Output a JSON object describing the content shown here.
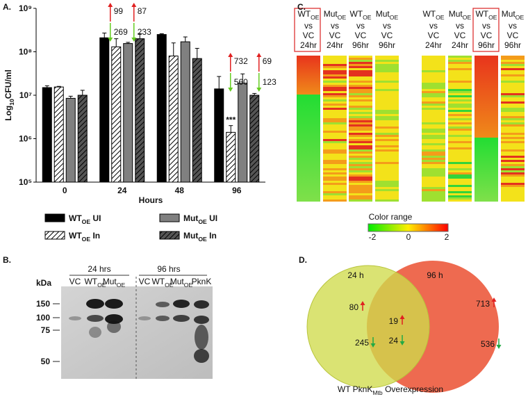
{
  "panel_labels": [
    "A.",
    "B.",
    "C.",
    "D."
  ],
  "chart_data": {
    "type": "bar",
    "log_y": true,
    "y_label": [
      "Log",
      "10",
      "CFU/ml"
    ],
    "x_label": "Hours",
    "categories": [
      "0",
      "24",
      "48",
      "96"
    ],
    "ylim": [
      100000,
      1000000000
    ],
    "yticks": [
      {
        "value": 100000,
        "label": "10⁵"
      },
      {
        "value": 1000000,
        "label": "10⁶"
      },
      {
        "value": 10000000,
        "label": "10⁷"
      },
      {
        "value": 100000000,
        "label": "10⁸"
      },
      {
        "value": 1000000000,
        "label": "10⁹"
      }
    ],
    "series": [
      {
        "name": [
          "WT",
          "OE",
          " UI"
        ],
        "color": "#000000",
        "hatch": false,
        "values": [
          15000000,
          210000000,
          250000000,
          14000000
        ],
        "errors": [
          1500000,
          60000000,
          10000000,
          13000000
        ]
      },
      {
        "name": [
          "WT",
          "OE",
          " In"
        ],
        "color": "#ffffff",
        "hatch": true,
        "values": [
          15500000,
          130000000,
          80000000,
          1400000
        ],
        "errors": [
          500000,
          70000000,
          80000000,
          600000
        ]
      },
      {
        "name": [
          "Mut",
          "OE",
          " UI"
        ],
        "color": "#808080",
        "hatch": false,
        "values": [
          8500000,
          155000000,
          170000000,
          19000000
        ],
        "errors": [
          1000000,
          10000000,
          50000000,
          12000000
        ]
      },
      {
        "name": [
          "Mut",
          "OE",
          " In"
        ],
        "color": "#555555",
        "hatch": true,
        "values": [
          10000000,
          200000000,
          70000000,
          10000000
        ],
        "errors": [
          3000000,
          60000000,
          50000000,
          1000000
        ]
      }
    ],
    "annotations": [
      {
        "up": "99",
        "down": "269"
      },
      {
        "up": "87",
        "down": "233"
      },
      {
        "up": "732",
        "down": "560"
      },
      {
        "up": "69",
        "down": "123"
      }
    ],
    "significance": "***"
  },
  "blot": {
    "unit": "kDa",
    "groups": [
      "24 hrs",
      "96 hrs"
    ],
    "lanes": [
      {
        "name": "VC"
      },
      {
        "name": "WT",
        "sub": "OE"
      },
      {
        "name": "Mut",
        "sub": "OE"
      },
      {
        "name": "VC"
      },
      {
        "name": "WT",
        "sub": "OE"
      },
      {
        "name": "Mut",
        "sub": "OE"
      },
      {
        "name": "PknK"
      }
    ],
    "markers": [
      "150",
      "100",
      "75",
      "50"
    ]
  },
  "heatmap": {
    "columns": [
      {
        "name": "WT",
        "sub": "OE",
        "vs": "vs",
        "ref": "VC",
        "time": "24hr"
      },
      {
        "name": "Mut",
        "sub": "OE",
        "vs": "vs",
        "ref": "VC",
        "time": "24hr"
      },
      {
        "name": "WT",
        "sub": "OE",
        "vs": "vs",
        "ref": "VC",
        "time": "96hr"
      },
      {
        "name": "Mut",
        "sub": "OE",
        "vs": "vs",
        "ref": "VC",
        "time": "96hr"
      },
      {
        "name": "WT",
        "sub": "OE",
        "vs": "vs",
        "ref": "VC",
        "time": "24hr"
      },
      {
        "name": "Mut",
        "sub": "OE",
        "vs": "vs",
        "ref": "VC",
        "time": "24hr"
      },
      {
        "name": "WT",
        "sub": "OE",
        "vs": "vs",
        "ref": "VC",
        "time": "96hr"
      },
      {
        "name": "Mut",
        "sub": "OE",
        "vs": "vs",
        "ref": "VC",
        "time": "96hr"
      }
    ],
    "color_range": {
      "title": "Color range",
      "ticks": [
        "-2",
        "0",
        "2"
      ]
    }
  },
  "venn": {
    "sets": [
      "24 h",
      "96 h"
    ],
    "regions": [
      {
        "up": "80",
        "down": "245"
      },
      {
        "up": "19",
        "down": "24"
      },
      {
        "up": "713",
        "down": "536"
      }
    ],
    "caption": [
      "WT PknK",
      "Mtb",
      " Overexpression"
    ]
  }
}
